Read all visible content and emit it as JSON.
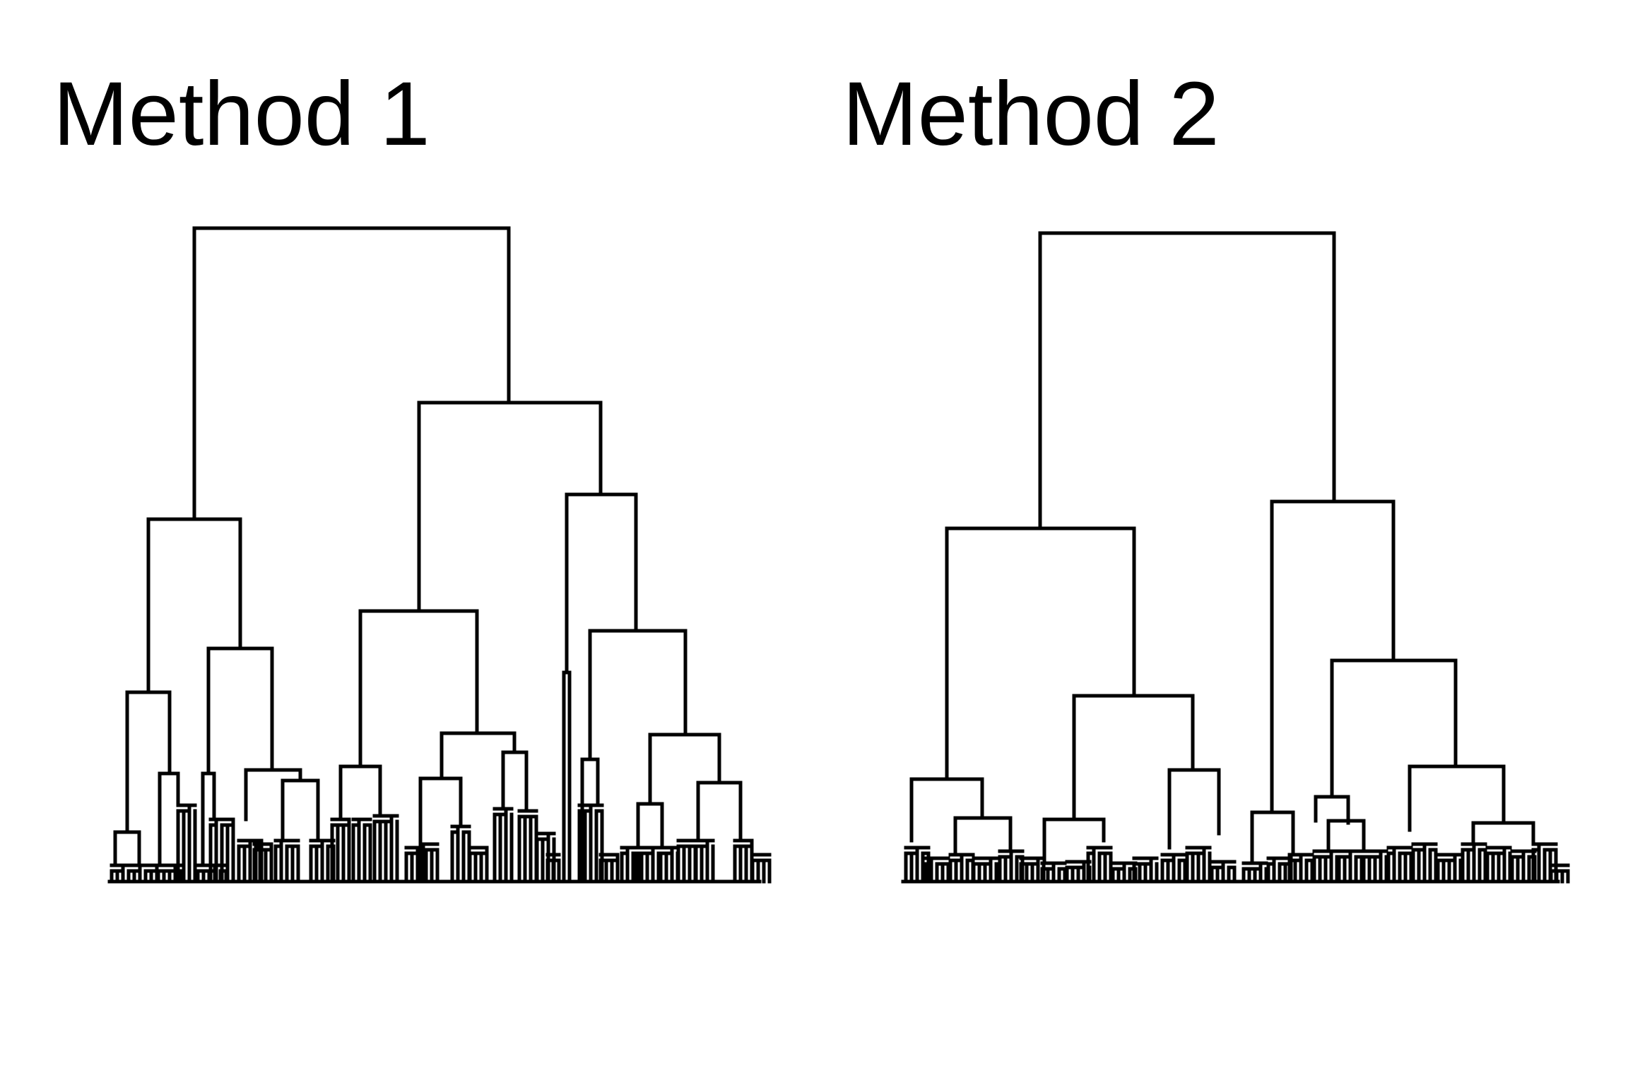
{
  "panels": [
    {
      "id": "method-1",
      "title": "Method 1",
      "leaf_count": 78,
      "line_color": "#000000"
    },
    {
      "id": "method-2",
      "title": "Method 2",
      "leaf_count": 78,
      "line_color": "#000000"
    }
  ]
}
